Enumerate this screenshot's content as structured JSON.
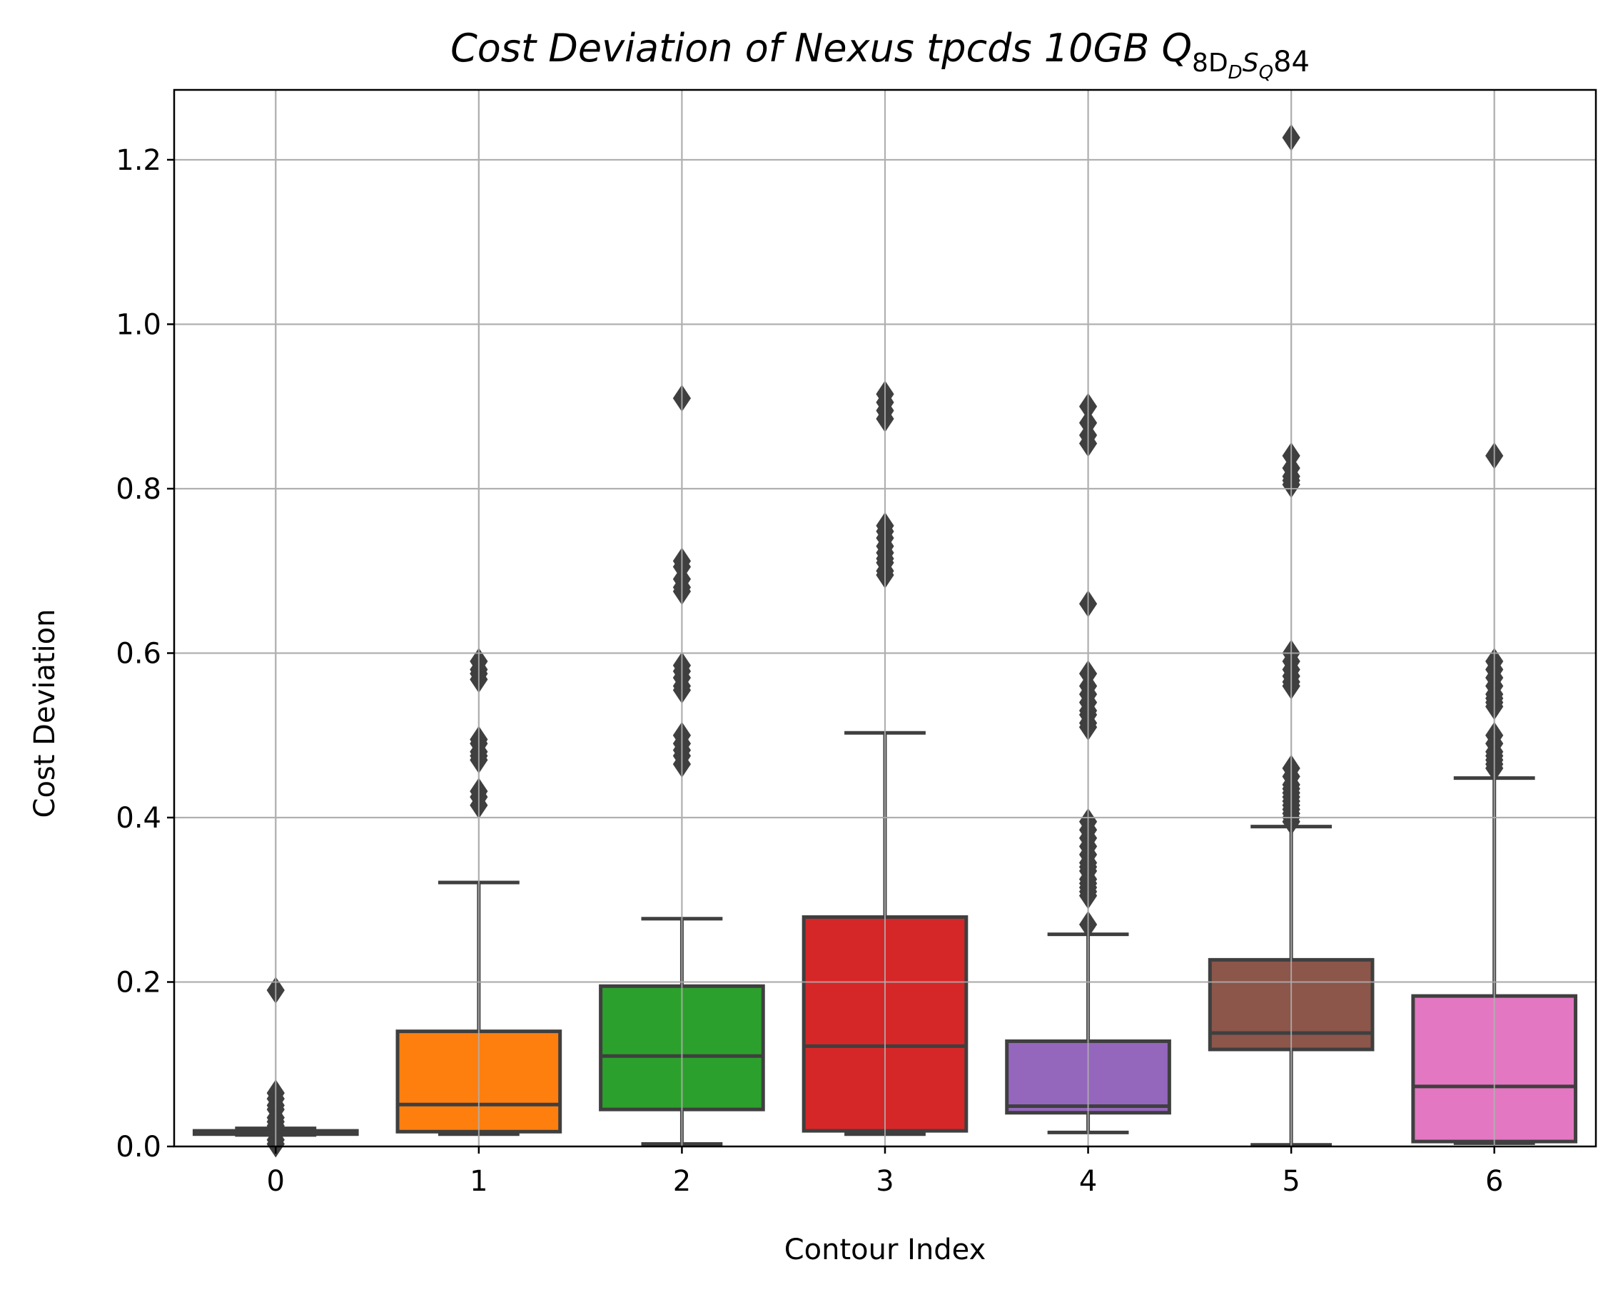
{
  "chart_data": {
    "type": "box",
    "title": "Cost Deviation of Nexus tpcds  10GB  Q",
    "title_subscript": "8D",
    "title_subscript_2": "D",
    "title_subscript_3": "S",
    "title_subscript_4": "Q",
    "title_suffix": "84",
    "xlabel": "Contour Index",
    "ylabel": "Cost Deviation",
    "categories": [
      "0",
      "1",
      "2",
      "3",
      "4",
      "5",
      "6"
    ],
    "ylim": [
      0,
      1.285
    ],
    "yticks": [
      0.0,
      0.2,
      0.4,
      0.6,
      0.8,
      1.0,
      1.2
    ],
    "ytick_labels": [
      "0.0",
      "0.2",
      "0.4",
      "0.6",
      "0.8",
      "1.0",
      "1.2"
    ],
    "grid": true,
    "boxes": [
      {
        "category": "0",
        "color": "#1f77b4",
        "whisker_low": 0.014,
        "q1": 0.015,
        "median": 0.017,
        "q3": 0.019,
        "whisker_high": 0.022,
        "outliers": [
          0.19,
          0.065,
          0.058,
          0.05,
          0.045,
          0.035,
          0.03,
          0.025,
          0.008,
          0.003
        ]
      },
      {
        "category": "1",
        "color": "#ff7f0e",
        "whisker_low": 0.015,
        "q1": 0.018,
        "median": 0.051,
        "q3": 0.14,
        "whisker_high": 0.321,
        "outliers": [
          0.59,
          0.58,
          0.575,
          0.568,
          0.495,
          0.49,
          0.48,
          0.475,
          0.47,
          0.432,
          0.425,
          0.415
        ]
      },
      {
        "category": "2",
        "color": "#2ca02c",
        "whisker_low": 0.003,
        "q1": 0.045,
        "median": 0.11,
        "q3": 0.195,
        "whisker_high": 0.277,
        "outliers": [
          0.91,
          0.712,
          0.705,
          0.69,
          0.68,
          0.675,
          0.585,
          0.578,
          0.57,
          0.56,
          0.555,
          0.5,
          0.49,
          0.482,
          0.475,
          0.465
        ]
      },
      {
        "category": "3",
        "color": "#d62728",
        "whisker_low": 0.015,
        "q1": 0.019,
        "median": 0.122,
        "q3": 0.279,
        "whisker_high": 0.503,
        "outliers": [
          0.915,
          0.905,
          0.895,
          0.885,
          0.755,
          0.748,
          0.74,
          0.73,
          0.722,
          0.715,
          0.71,
          0.7,
          0.695
        ]
      },
      {
        "category": "4",
        "color": "#9467bd",
        "whisker_low": 0.017,
        "q1": 0.041,
        "median": 0.049,
        "q3": 0.128,
        "whisker_high": 0.258,
        "outliers": [
          0.9,
          0.88,
          0.865,
          0.855,
          0.66,
          0.575,
          0.56,
          0.55,
          0.54,
          0.53,
          0.525,
          0.515,
          0.51,
          0.395,
          0.385,
          0.375,
          0.365,
          0.355,
          0.345,
          0.34,
          0.335,
          0.325,
          0.32,
          0.315,
          0.31,
          0.305,
          0.27
        ]
      },
      {
        "category": "5",
        "color": "#8c564b",
        "whisker_low": 0.002,
        "q1": 0.118,
        "median": 0.138,
        "q3": 0.227,
        "whisker_high": 0.389,
        "outliers": [
          1.227,
          0.84,
          0.825,
          0.815,
          0.81,
          0.805,
          0.6,
          0.59,
          0.58,
          0.572,
          0.565,
          0.56,
          0.46,
          0.45,
          0.44,
          0.435,
          0.43,
          0.425,
          0.42,
          0.415,
          0.41,
          0.405,
          0.4,
          0.395
        ]
      },
      {
        "category": "6",
        "color": "#e377c2",
        "whisker_low": 0.004,
        "q1": 0.006,
        "median": 0.073,
        "q3": 0.183,
        "whisker_high": 0.448,
        "outliers": [
          0.84,
          0.59,
          0.58,
          0.57,
          0.56,
          0.55,
          0.545,
          0.54,
          0.535,
          0.5,
          0.49,
          0.48,
          0.475,
          0.47,
          0.465,
          0.46
        ]
      }
    ]
  }
}
